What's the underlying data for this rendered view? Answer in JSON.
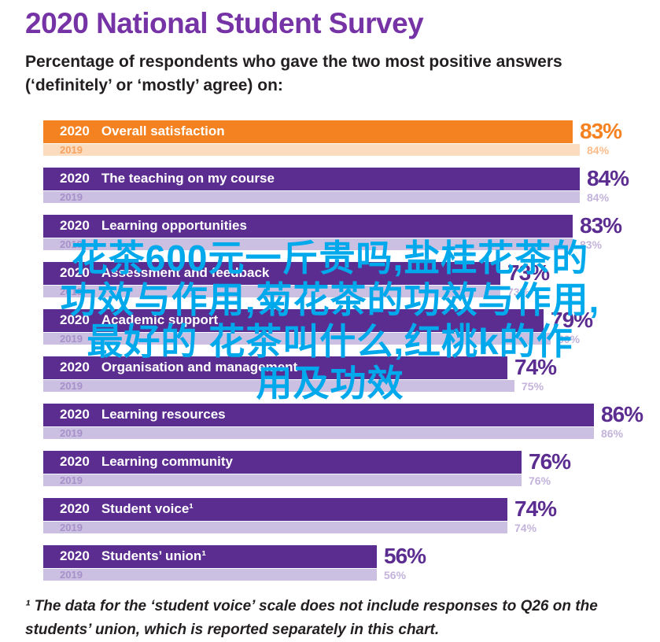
{
  "chart_data": {
    "type": "bar",
    "orientation": "horizontal",
    "title": "2020 National Student Survey",
    "subtitle_lines": [
      "Percentage of respondents who gave the two most positive answers",
      "(‘definitely’ or ‘mostly’ agree) on:"
    ],
    "footnote_lines": [
      "¹ The data for the ‘student voice’ scale does not include responses to Q26 on the",
      "students’ union, which is reported separately in this chart."
    ],
    "unit": "%",
    "xlim": [
      0,
      100
    ],
    "grid": false,
    "legend": "year labels printed inside each bar",
    "categories": [
      "Overall satisfaction",
      "The teaching on my course",
      "Learning opportunities",
      "Assessment and feedback",
      "Academic support",
      "Organisation and management",
      "Learning resources",
      "Learning community",
      "Student voice¹",
      "Students’ union¹"
    ],
    "series": [
      {
        "name": "2020",
        "values": [
          83,
          84,
          83,
          73,
          79,
          74,
          86,
          76,
          74,
          56
        ]
      },
      {
        "name": "2019",
        "values": [
          84,
          84,
          83,
          73,
          80,
          75,
          86,
          76,
          74,
          56
        ]
      }
    ],
    "highlight_category": "Overall satisfaction",
    "colors": {
      "highlight_2020_bar": "#F58220",
      "highlight_2019_bar": "#FBDCBE",
      "highlight_2019_year_text": "#F6A160",
      "highlight_2019_value_text": "#FABC8B",
      "default_2020_bar": "#5C2D90",
      "default_2019_bar": "#CBC0E1",
      "default_2019_year_text": "#A690C9",
      "default_2019_value_text": "#C3B3DB",
      "title_text": "#7633A6",
      "body_text": "#231F20"
    }
  },
  "watermark": {
    "color": "#00A9EC",
    "lines": [
      "花茶600元一斤贵吗,盐桂花茶的",
      "功效与作用,菊花茶的功效与作用,",
      "最好的  花茶叫什么,红桃k的作",
      "用及功效"
    ]
  }
}
